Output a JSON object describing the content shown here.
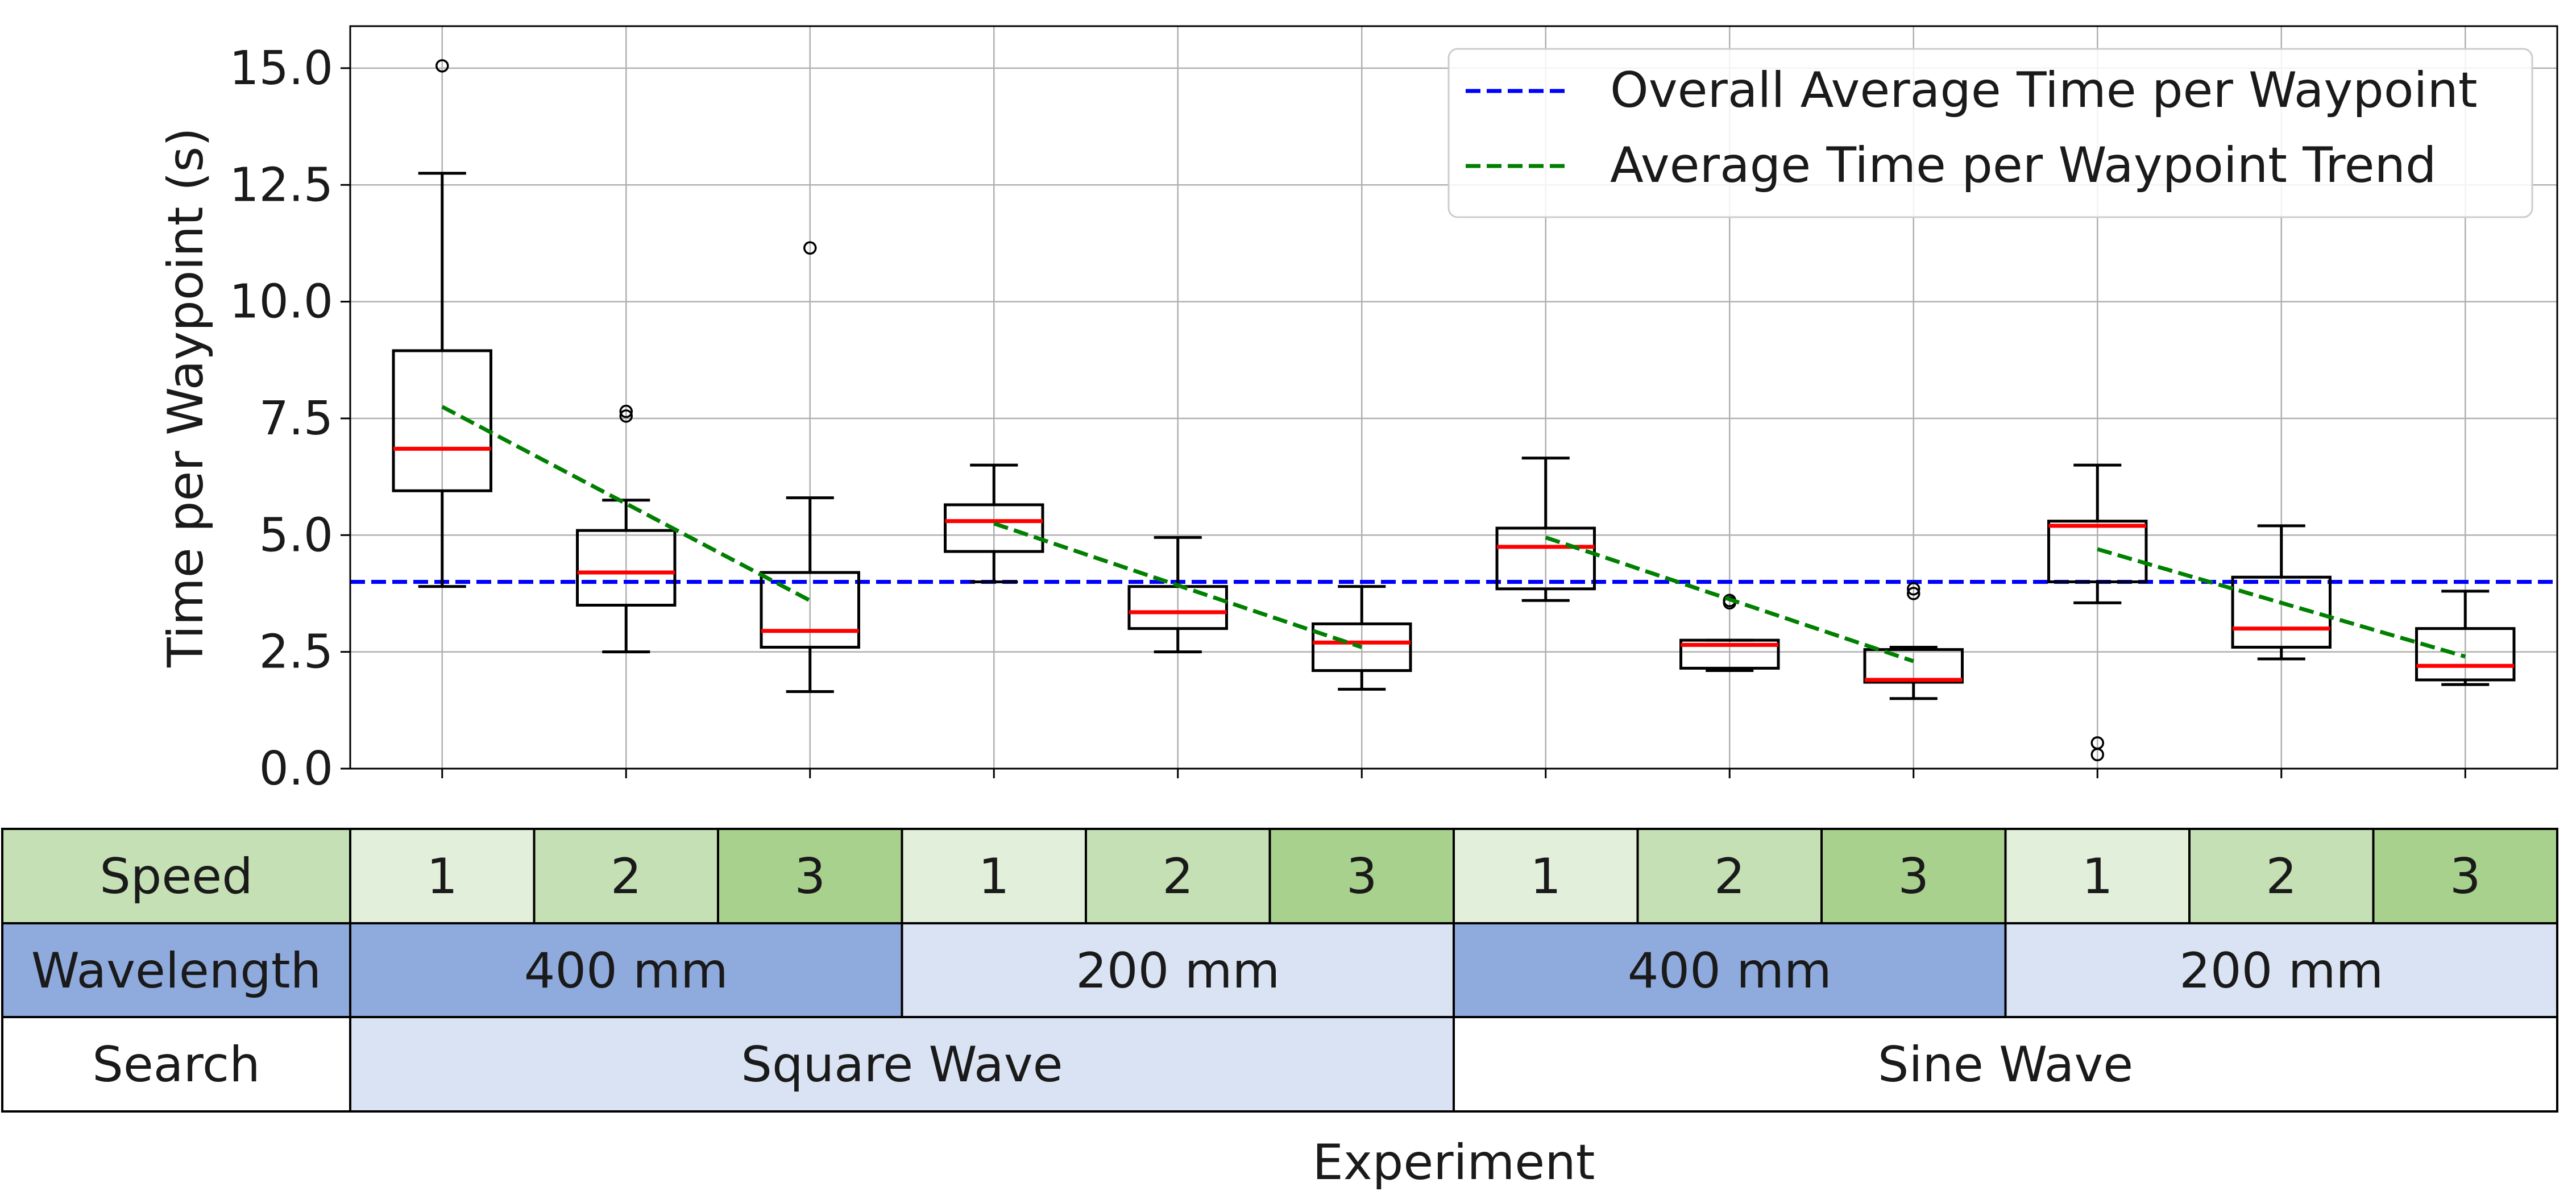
{
  "chart_data": {
    "type": "box",
    "title": "",
    "xlabel": "Experiment",
    "ylabel": "Time per Waypoint (s)",
    "ylim": [
      0,
      15.9
    ],
    "yticks": [
      0.0,
      2.5,
      5.0,
      7.5,
      10.0,
      12.5,
      15.0
    ],
    "ytick_labels": [
      "0.0",
      "2.5",
      "5.0",
      "7.5",
      "10.0",
      "12.5",
      "15.0"
    ],
    "grid": true,
    "legend": {
      "position": "top-right",
      "entries": [
        {
          "label": "Overall Average Time per Waypoint",
          "color": "#0000ff",
          "style": "dashed"
        },
        {
          "label": "Average Time per Waypoint Trend",
          "color": "#008000",
          "style": "dashed"
        }
      ]
    },
    "overall_average": 4.0,
    "boxes": [
      {
        "whisker_low": 3.9,
        "q1": 5.95,
        "median": 6.85,
        "q3": 8.95,
        "whisker_high": 12.75,
        "outliers": [
          15.05
        ]
      },
      {
        "whisker_low": 2.5,
        "q1": 3.5,
        "median": 4.2,
        "q3": 5.1,
        "whisker_high": 5.75,
        "outliers": [
          7.55,
          7.65
        ]
      },
      {
        "whisker_low": 1.65,
        "q1": 2.6,
        "median": 2.95,
        "q3": 4.2,
        "whisker_high": 5.8,
        "outliers": [
          11.15
        ]
      },
      {
        "whisker_low": 4.0,
        "q1": 4.65,
        "median": 5.3,
        "q3": 5.65,
        "whisker_high": 6.5,
        "outliers": []
      },
      {
        "whisker_low": 2.5,
        "q1": 3.0,
        "median": 3.35,
        "q3": 3.9,
        "whisker_high": 4.95,
        "outliers": []
      },
      {
        "whisker_low": 1.7,
        "q1": 2.1,
        "median": 2.7,
        "q3": 3.1,
        "whisker_high": 3.9,
        "outliers": []
      },
      {
        "whisker_low": 3.6,
        "q1": 3.85,
        "median": 4.75,
        "q3": 5.15,
        "whisker_high": 6.65,
        "outliers": []
      },
      {
        "whisker_low": 2.1,
        "q1": 2.15,
        "median": 2.65,
        "q3": 2.75,
        "whisker_high": 2.75,
        "outliers": [
          3.55,
          3.6
        ]
      },
      {
        "whisker_low": 1.5,
        "q1": 1.85,
        "median": 1.9,
        "q3": 2.55,
        "whisker_high": 2.6,
        "outliers": [
          3.75,
          3.85
        ]
      },
      {
        "whisker_low": 3.55,
        "q1": 4.0,
        "median": 5.2,
        "q3": 5.3,
        "whisker_high": 6.5,
        "outliers": [
          0.55,
          0.3
        ]
      },
      {
        "whisker_low": 2.35,
        "q1": 2.6,
        "median": 3.0,
        "q3": 4.1,
        "whisker_high": 5.2,
        "outliers": []
      },
      {
        "whisker_low": 1.8,
        "q1": 1.9,
        "median": 2.2,
        "q3": 3.0,
        "whisker_high": 3.8,
        "outliers": []
      }
    ],
    "trend_lines": [
      {
        "from_box": 1,
        "to_box": 3,
        "y_start": 7.75,
        "y_end": 3.6
      },
      {
        "from_box": 4,
        "to_box": 6,
        "y_start": 5.25,
        "y_end": 2.6
      },
      {
        "from_box": 7,
        "to_box": 9,
        "y_start": 4.95,
        "y_end": 2.3
      },
      {
        "from_box": 10,
        "to_box": 12,
        "y_start": 4.7,
        "y_end": 2.4
      }
    ],
    "table": {
      "rows": [
        {
          "header": "Speed",
          "header_color": "#c5e0b4",
          "cells": [
            {
              "label": "1",
              "span": 1,
              "color": "#e2efda"
            },
            {
              "label": "2",
              "span": 1,
              "color": "#c5e0b4"
            },
            {
              "label": "3",
              "span": 1,
              "color": "#a9d18e"
            },
            {
              "label": "1",
              "span": 1,
              "color": "#e2efda"
            },
            {
              "label": "2",
              "span": 1,
              "color": "#c5e0b4"
            },
            {
              "label": "3",
              "span": 1,
              "color": "#a9d18e"
            },
            {
              "label": "1",
              "span": 1,
              "color": "#e2efda"
            },
            {
              "label": "2",
              "span": 1,
              "color": "#c5e0b4"
            },
            {
              "label": "3",
              "span": 1,
              "color": "#a9d18e"
            },
            {
              "label": "1",
              "span": 1,
              "color": "#e2efda"
            },
            {
              "label": "2",
              "span": 1,
              "color": "#c5e0b4"
            },
            {
              "label": "3",
              "span": 1,
              "color": "#a9d18e"
            }
          ]
        },
        {
          "header": "Wavelength",
          "header_color": "#8faadc",
          "cells": [
            {
              "label": "400 mm",
              "span": 3,
              "color": "#8faadc"
            },
            {
              "label": "200 mm",
              "span": 3,
              "color": "#dae3f3"
            },
            {
              "label": "400 mm",
              "span": 3,
              "color": "#8faadc"
            },
            {
              "label": "200 mm",
              "span": 3,
              "color": "#dae3f3"
            }
          ]
        },
        {
          "header": "Search",
          "header_color": "#ffffff",
          "cells": [
            {
              "label": "Square Wave",
              "span": 6,
              "color": "#dae3f3"
            },
            {
              "label": "Sine Wave",
              "span": 6,
              "color": "#ffffff"
            }
          ]
        }
      ]
    }
  }
}
